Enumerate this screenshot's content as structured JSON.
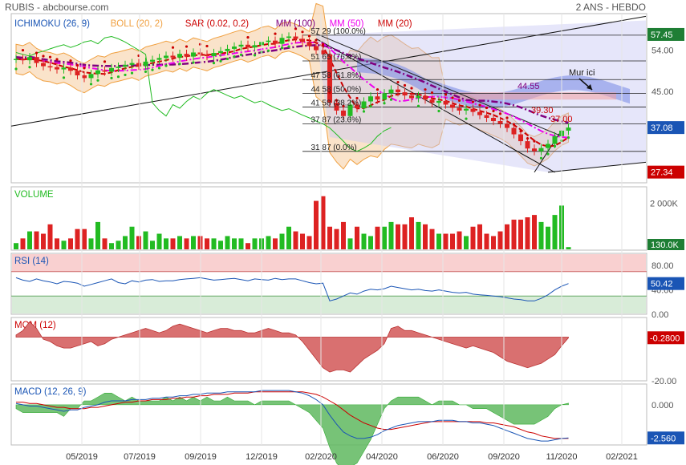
{
  "header": {
    "title": "RUBIS - abcbourse.com",
    "period": "2 ANS - HEBDO"
  },
  "colors": {
    "up": "#22bb22",
    "down": "#dd2222",
    "ichimoku": "#1a55b5",
    "boll": "#f0a040",
    "sar": "#cc0000",
    "mm100": "#800080",
    "mm50": "#ee00ee",
    "mm20": "#cc0000",
    "rsi": "#1a55b5",
    "macd": "#1a55b5",
    "signal": "#cc0000",
    "price_badge": "#1a55b5",
    "green_badge": "#1e7e34",
    "red_badge": "#cc0000"
  },
  "chart_data": [
    {
      "type": "candlestick",
      "title": "",
      "legend": [
        {
          "label": "ICHIMOKU (26, 9)",
          "color": "#1a55b5"
        },
        {
          "label": "BOLL (20, 2)",
          "color": "#f0a040"
        },
        {
          "label": "SAR (0.02, 0.2)",
          "color": "#cc0000"
        },
        {
          "label": "MM (100)",
          "color": "#800080"
        },
        {
          "label": "MM (50)",
          "color": "#ee00ee"
        },
        {
          "label": "MM (20)",
          "color": "#cc0000"
        }
      ],
      "x_ticks": [
        "05/2019",
        "07/2019",
        "09/2019",
        "12/2019",
        "02/2020",
        "04/2020",
        "06/2020",
        "09/2020",
        "11/2020",
        "02/2021"
      ],
      "y_ticks": [
        54.0,
        45.0
      ],
      "price_labels": [
        {
          "value": "57.45",
          "kind": "green"
        },
        {
          "value": "37.08",
          "kind": "blue"
        },
        {
          "value": "27.34",
          "kind": "red"
        }
      ],
      "fibonacci": [
        {
          "label": "57.29  (100.0%)",
          "value": 57.29
        },
        {
          "label": "51.65  (76.4%)",
          "value": 51.65
        },
        {
          "label": "47.58  (61.8%)",
          "value": 47.58
        },
        {
          "label": "44.58  (50.0%)",
          "value": 44.58
        },
        {
          "label": "41.58  (38.2%)",
          "value": 41.58
        },
        {
          "label": "37.87  (23.6%)",
          "value": 37.87
        },
        {
          "label": "31.87  (0.0%)",
          "value": 31.87
        }
      ],
      "annotations": [
        {
          "text": "Mur ici"
        },
        {
          "text": "44.55",
          "color": "#800080"
        },
        {
          "text": "39.30",
          "color": "#cc0000"
        },
        {
          "text": "37.00",
          "color": "#cc0000"
        }
      ],
      "close": [
        52.1,
        51.8,
        52.5,
        51.2,
        50.5,
        50.3,
        49.8,
        50.2,
        49.5,
        48.5,
        47.9,
        48.8,
        49.6,
        49.3,
        50.1,
        50.4,
        50.8,
        51.2,
        50.6,
        51.5,
        51.9,
        52.3,
        52.8,
        52.4,
        53.2,
        52.6,
        53.5,
        53.1,
        52.7,
        53.4,
        53.8,
        54.3,
        54.8,
        55.2,
        54.6,
        55.1,
        55.8,
        56.1,
        55.4,
        56.7,
        57.0,
        56.5,
        55.8,
        54.9,
        54.0,
        53.1,
        42.5,
        40.8,
        39.6,
        42.1,
        41.3,
        42.8,
        43.9,
        43.2,
        44.6,
        45.4,
        44.8,
        44.1,
        43.5,
        44.0,
        43.2,
        42.5,
        42.9,
        42.1,
        41.4,
        40.8,
        41.2,
        40.5,
        39.8,
        39.2,
        38.5,
        37.9,
        37.0,
        35.6,
        34.1,
        32.5,
        31.9,
        32.6,
        33.5,
        35.2,
        36.4,
        37.08
      ]
    },
    {
      "type": "bar",
      "title": "VOLUME",
      "y_ticks": [
        "2 000K"
      ],
      "last_label": "130.0K",
      "values_k": [
        300,
        500,
        800,
        800,
        700,
        1100,
        500,
        400,
        500,
        900,
        900,
        500,
        1200,
        500,
        300,
        400,
        600,
        1000,
        600,
        800,
        400,
        700,
        500,
        500,
        600,
        500,
        600,
        600,
        500,
        500,
        400,
        600,
        500,
        500,
        300,
        500,
        500,
        600,
        500,
        700,
        1000,
        800,
        700,
        600,
        2100,
        2300,
        1000,
        900,
        1200,
        500,
        1000,
        700,
        600,
        1000,
        1000,
        1200,
        1100,
        1100,
        1400,
        1200,
        1100,
        900,
        700,
        700,
        700,
        800,
        600,
        1000,
        1100,
        700,
        600,
        800,
        1100,
        1300,
        1300,
        1400,
        1500,
        1200,
        1000,
        1500,
        1900,
        130
      ]
    },
    {
      "type": "line",
      "title": "RSI (14)",
      "y_ticks": [
        80.0,
        40.0,
        0.0
      ],
      "last_label": "50.42",
      "overbought": 70,
      "oversold": 30,
      "values": [
        60,
        56,
        54,
        58,
        55,
        53,
        50,
        54,
        53,
        51,
        46,
        49,
        52,
        55,
        58,
        52,
        50,
        55,
        53,
        56,
        57,
        54,
        55,
        55,
        57,
        58,
        59,
        60,
        58,
        56,
        57,
        58,
        59,
        57,
        55,
        58,
        57,
        56,
        59,
        57,
        58,
        58,
        55,
        52,
        50,
        51,
        22,
        25,
        30,
        35,
        33,
        38,
        41,
        40,
        42,
        46,
        44,
        42,
        40,
        41,
        39,
        38,
        40,
        38,
        36,
        35,
        36,
        33,
        32,
        31,
        30,
        29,
        27,
        25,
        24,
        22,
        22,
        26,
        32,
        40,
        46,
        50.42
      ]
    },
    {
      "type": "area",
      "title": "MOM (12)",
      "y_ticks": [
        -20.0
      ],
      "last_label": "-0.2800",
      "values": [
        1,
        3,
        7,
        4,
        -1,
        -2,
        -4,
        -5,
        -5,
        -4,
        -3,
        -2,
        -4,
        -3,
        -1,
        0,
        1,
        2,
        3,
        4,
        3,
        2,
        3,
        5,
        6,
        5,
        4,
        3,
        2,
        3,
        4,
        4,
        3,
        3,
        2,
        2,
        3,
        4,
        3,
        2,
        2,
        1,
        -2,
        -6,
        -10,
        -14,
        -16,
        -15,
        -15,
        -16,
        -13,
        -10,
        -8,
        -6,
        -3,
        4,
        5,
        3,
        3,
        2,
        1,
        0,
        -1,
        -2,
        -3,
        -4,
        -5,
        -4,
        -5,
        -6,
        -7,
        -9,
        -11,
        -12,
        -13,
        -14,
        -13,
        -12,
        -10,
        -8,
        -4,
        -0.28
      ]
    },
    {
      "type": "line",
      "title": "MACD (12, 26, 9)",
      "y_ticks": [
        0.0,
        -2.5
      ],
      "last_label": "-2.560",
      "macd": [
        0.1,
        0.0,
        -0.1,
        -0.1,
        -0.2,
        -0.3,
        -0.4,
        -0.5,
        -0.4,
        -0.4,
        -0.2,
        -0.1,
        0.0,
        0.2,
        0.3,
        0.3,
        0.3,
        0.4,
        0.4,
        0.4,
        0.5,
        0.5,
        0.6,
        0.6,
        0.7,
        0.7,
        0.8,
        0.8,
        0.9,
        0.9,
        0.9,
        1.0,
        1.0,
        1.0,
        1.0,
        1.0,
        1.1,
        1.1,
        1.1,
        1.1,
        1.1,
        1.0,
        0.9,
        0.7,
        0.4,
        0.0,
        -0.8,
        -1.5,
        -2.1,
        -2.4,
        -2.6,
        -2.6,
        -2.5,
        -2.3,
        -2.0,
        -1.8,
        -1.6,
        -1.5,
        -1.4,
        -1.3,
        -1.3,
        -1.3,
        -1.2,
        -1.2,
        -1.2,
        -1.3,
        -1.3,
        -1.4,
        -1.4,
        -1.5,
        -1.6,
        -1.8,
        -2.0,
        -2.2,
        -2.4,
        -2.6,
        -2.7,
        -2.8,
        -2.8,
        -2.7,
        -2.6,
        -2.56
      ],
      "signal": [
        0.2,
        0.2,
        0.1,
        0.1,
        0.0,
        -0.1,
        -0.2,
        -0.2,
        -0.3,
        -0.3,
        -0.3,
        -0.2,
        -0.2,
        -0.1,
        0.0,
        0.1,
        0.2,
        0.2,
        0.3,
        0.3,
        0.4,
        0.4,
        0.4,
        0.5,
        0.5,
        0.6,
        0.6,
        0.7,
        0.7,
        0.8,
        0.8,
        0.8,
        0.9,
        0.9,
        0.9,
        1.0,
        1.0,
        1.0,
        1.0,
        1.0,
        1.0,
        1.0,
        1.0,
        0.9,
        0.8,
        0.6,
        0.3,
        0.0,
        -0.4,
        -0.8,
        -1.1,
        -1.4,
        -1.6,
        -1.8,
        -1.9,
        -1.9,
        -1.8,
        -1.7,
        -1.6,
        -1.5,
        -1.4,
        -1.3,
        -1.3,
        -1.3,
        -1.3,
        -1.3,
        -1.3,
        -1.3,
        -1.3,
        -1.4,
        -1.4,
        -1.5,
        -1.6,
        -1.7,
        -1.9,
        -2.1,
        -2.2,
        -2.4,
        -2.5,
        -2.6,
        -2.6,
        -2.6
      ]
    }
  ]
}
